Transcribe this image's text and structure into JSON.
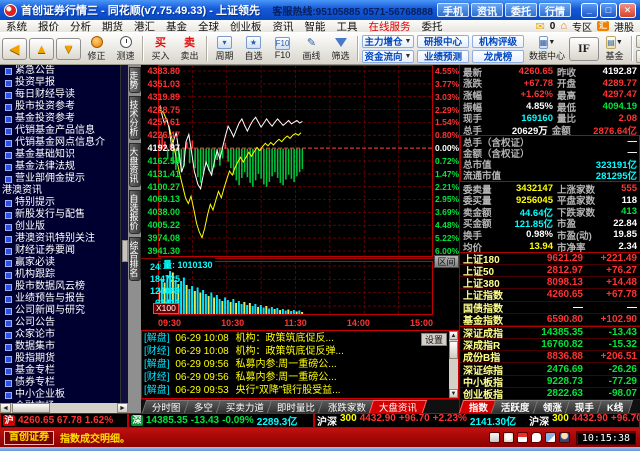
{
  "window": {
    "title": "首创证券行情三 - 同花顺(v7.75.49.33) - 上证领先",
    "hotline": "客服热线:95105885 0571-56768888",
    "quick_buttons": [
      {
        "label": "手机"
      },
      {
        "label": "资讯"
      },
      {
        "label": "委托"
      },
      {
        "label": "行情"
      }
    ],
    "min": "_",
    "max": "□",
    "close": "✕"
  },
  "menu": {
    "items": [
      {
        "label": "系统"
      },
      {
        "label": "报价"
      },
      {
        "label": "分析"
      },
      {
        "label": "期货"
      },
      {
        "label": "港汇"
      },
      {
        "label": "基金"
      },
      {
        "label": "全球"
      },
      {
        "label": "创业板"
      },
      {
        "label": "资讯"
      },
      {
        "label": "智能"
      },
      {
        "label": "工具"
      },
      {
        "label": "在线服务",
        "cls": "hot"
      },
      {
        "label": "委托"
      }
    ],
    "mail_badge": "0",
    "zone_label": "专区",
    "hk_icon": "汇",
    "hk_label": "港股"
  },
  "toolbar": {
    "back": "◀",
    "up": "▲",
    "down": "▼",
    "fix": "修正",
    "speed": "测速",
    "buy_icon": "买",
    "buy": "买入",
    "sell_icon": "卖",
    "sell": "卖出",
    "period": "周期",
    "watchlist": "自选",
    "f10": "F10",
    "draw": "画线",
    "draw_icon": "✎",
    "filter": "筛选",
    "main_force": "主力增仓",
    "research": "研报中心",
    "rating": "机构评级",
    "moneyflow": "资金流向",
    "forecast": "业绩预测",
    "dragon": "龙虎榜",
    "datacenter": "数据中心",
    "if_label": "IF",
    "fund": "基金",
    "markets": [
      {
        "label": "全球"
      },
      {
        "label": "港股"
      },
      {
        "label": "债"
      },
      {
        "label": "期货"
      },
      {
        "label": "外汇"
      },
      {
        "label": "美"
      }
    ]
  },
  "sidebar": {
    "items": [
      {
        "label": "紧急公告"
      },
      {
        "label": "投资早报"
      },
      {
        "label": "每日财经导读"
      },
      {
        "label": "股市投资参考"
      },
      {
        "label": "基金投资参考"
      },
      {
        "label": "代销基金产品信息"
      },
      {
        "label": "代销基金网点信息介"
      },
      {
        "label": "基金基础知识"
      },
      {
        "label": "基金法律法规"
      },
      {
        "label": "营业部佣金提示"
      },
      {
        "label": "港澳资讯",
        "cls": "hdr"
      },
      {
        "label": "特别提示"
      },
      {
        "label": "新股发行与配售"
      },
      {
        "label": "创业版"
      },
      {
        "label": "港澳资讯特别关注"
      },
      {
        "label": "财经证券要闻"
      },
      {
        "label": "赢家必读"
      },
      {
        "label": "机构跟踪"
      },
      {
        "label": "股市数据风云榜"
      },
      {
        "label": "业绩预告与报告"
      },
      {
        "label": "公司新闻与研究"
      },
      {
        "label": "公司公告"
      },
      {
        "label": "众家论市"
      },
      {
        "label": "数据集市"
      },
      {
        "label": "股指期货"
      },
      {
        "label": "基金专栏"
      },
      {
        "label": "债券专栏"
      },
      {
        "label": "中小企业板"
      },
      {
        "label": "金融市场"
      }
    ]
  },
  "vtabs": [
    {
      "label": "走势",
      "cls": "first"
    },
    {
      "label": "技术分析"
    },
    {
      "label": "大盘资讯"
    },
    {
      "label": "自选报价"
    },
    {
      "label": "综合排名"
    }
  ],
  "chart": {
    "price_labels": [
      {
        "t": "4383.80",
        "c": "red"
      },
      {
        "t": "4351.03",
        "c": "red"
      },
      {
        "t": "4319.89",
        "c": "red"
      },
      {
        "t": "4288.75",
        "c": "red"
      },
      {
        "t": "4257.61",
        "c": "red"
      },
      {
        "t": "4226.47",
        "c": "red"
      },
      {
        "t": "4192.87",
        "c": "white"
      },
      {
        "t": "4162.55",
        "c": "green"
      },
      {
        "t": "4131.41",
        "c": "green"
      },
      {
        "t": "4100.27",
        "c": "green"
      },
      {
        "t": "4069.13",
        "c": "green"
      },
      {
        "t": "4038.00",
        "c": "green"
      },
      {
        "t": "4005.22",
        "c": "green"
      },
      {
        "t": "3974.08",
        "c": "green"
      },
      {
        "t": "3941.30",
        "c": "green"
      }
    ],
    "pct_labels": [
      {
        "t": "4.55%",
        "c": "red"
      },
      {
        "t": "3.77%",
        "c": "red"
      },
      {
        "t": "3.03%",
        "c": "red"
      },
      {
        "t": "2.29%",
        "c": "red"
      },
      {
        "t": "1.54%",
        "c": "red"
      },
      {
        "t": "0.80%",
        "c": "red"
      },
      {
        "t": "0.00%",
        "c": "white"
      },
      {
        "t": "0.72%",
        "c": "green"
      },
      {
        "t": "1.47%",
        "c": "green"
      },
      {
        "t": "2.21%",
        "c": "green"
      },
      {
        "t": "2.95%",
        "c": "green"
      },
      {
        "t": "3.69%",
        "c": "green"
      },
      {
        "t": "4.48%",
        "c": "green"
      },
      {
        "t": "5.22%",
        "c": "green"
      },
      {
        "t": "6.00%",
        "c": "green"
      }
    ],
    "x_ticks": [
      {
        "t": "09:30"
      },
      {
        "t": "10:30"
      },
      {
        "t": "11:30"
      },
      {
        "t": "14:00"
      },
      {
        "t": "15:00"
      }
    ],
    "volume_label": "量: 1010130",
    "volume_axis": [
      {
        "t": "245381"
      },
      {
        "t": "184725"
      },
      {
        "t": "124069"
      },
      {
        "t": "63413"
      }
    ],
    "x100": "X100",
    "range_btn": "区间",
    "axis": {
      "top": 4383.8,
      "bottom": 3941.3,
      "mid": 4192.87
    },
    "colors": {
      "up": "#ff3030",
      "down": "#00c23a",
      "line": "#ffffff",
      "avg": "#ffff00",
      "grid": "#820000",
      "gridmid": "#ff4444",
      "volc": "#00e5ff",
      "voly": "#e8e85a",
      "border": "#c00000"
    },
    "white_line": [
      [
        0.0,
        4289.8
      ],
      [
        0.008,
        4297.5
      ],
      [
        0.016,
        4272
      ],
      [
        0.024,
        4254
      ],
      [
        0.032,
        4266
      ],
      [
        0.04,
        4244
      ],
      [
        0.05,
        4196
      ],
      [
        0.058,
        4216
      ],
      [
        0.066,
        4232
      ],
      [
        0.076,
        4186
      ],
      [
        0.086,
        4135
      ],
      [
        0.094,
        4152
      ],
      [
        0.102,
        4210
      ],
      [
        0.112,
        4228
      ],
      [
        0.122,
        4186
      ],
      [
        0.132,
        4138
      ],
      [
        0.145,
        4105
      ],
      [
        0.155,
        4094.2
      ],
      [
        0.165,
        4130
      ],
      [
        0.175,
        4160
      ],
      [
        0.185,
        4142
      ],
      [
        0.195,
        4128
      ],
      [
        0.205,
        4162
      ],
      [
        0.215,
        4188
      ],
      [
        0.225,
        4168
      ],
      [
        0.235,
        4196
      ],
      [
        0.245,
        4224
      ],
      [
        0.255,
        4248
      ],
      [
        0.265,
        4236
      ],
      [
        0.275,
        4222
      ],
      [
        0.285,
        4240
      ],
      [
        0.295,
        4256
      ],
      [
        0.305,
        4266
      ],
      [
        0.315,
        4250
      ],
      [
        0.325,
        4236
      ],
      [
        0.335,
        4250
      ],
      [
        0.345,
        4262
      ],
      [
        0.355,
        4270
      ],
      [
        0.365,
        4258
      ],
      [
        0.375,
        4246
      ],
      [
        0.385,
        4256
      ],
      [
        0.395,
        4266
      ],
      [
        0.405,
        4256
      ],
      [
        0.415,
        4248
      ],
      [
        0.425,
        4258
      ],
      [
        0.435,
        4266
      ],
      [
        0.445,
        4258
      ],
      [
        0.455,
        4250
      ],
      [
        0.465,
        4256
      ],
      [
        0.475,
        4262
      ],
      [
        0.485,
        4254
      ],
      [
        0.495,
        4258
      ],
      [
        0.505,
        4262
      ],
      [
        0.515,
        4256
      ],
      [
        0.525,
        4260
      ]
    ],
    "yellow_line": [
      [
        0.0,
        4289.8
      ],
      [
        0.02,
        4282
      ],
      [
        0.04,
        4248
      ],
      [
        0.06,
        4190
      ],
      [
        0.08,
        4128
      ],
      [
        0.1,
        4072
      ],
      [
        0.11,
        4058
      ],
      [
        0.12,
        4076
      ],
      [
        0.13,
        4044
      ],
      [
        0.14,
        4010
      ],
      [
        0.15,
        3988
      ],
      [
        0.16,
        3974.1
      ],
      [
        0.17,
        3998
      ],
      [
        0.18,
        4030
      ],
      [
        0.19,
        4056
      ],
      [
        0.2,
        4042
      ],
      [
        0.21,
        4066
      ],
      [
        0.22,
        4088
      ],
      [
        0.23,
        4072
      ],
      [
        0.24,
        4096
      ],
      [
        0.25,
        4118
      ],
      [
        0.26,
        4138
      ],
      [
        0.27,
        4128
      ],
      [
        0.28,
        4146
      ],
      [
        0.29,
        4160
      ],
      [
        0.3,
        4172
      ],
      [
        0.31,
        4160
      ],
      [
        0.32,
        4172
      ],
      [
        0.33,
        4184
      ],
      [
        0.34,
        4174
      ],
      [
        0.35,
        4186
      ],
      [
        0.36,
        4196
      ],
      [
        0.37,
        4188
      ],
      [
        0.38,
        4198
      ],
      [
        0.39,
        4206
      ],
      [
        0.4,
        4200
      ],
      [
        0.41,
        4208
      ],
      [
        0.42,
        4202
      ],
      [
        0.43,
        4210
      ],
      [
        0.44,
        4216
      ],
      [
        0.45,
        4210
      ],
      [
        0.46,
        4218
      ],
      [
        0.47,
        4224
      ],
      [
        0.48,
        4218
      ],
      [
        0.49,
        4226
      ],
      [
        0.5,
        4230
      ],
      [
        0.51,
        4226
      ],
      [
        0.52,
        4232
      ]
    ],
    "mid_bars": {
      "start": 0.005,
      "step": 0.01,
      "deltas": [
        22,
        34,
        18,
        -26,
        12,
        -38,
        -52,
        -30,
        -58,
        -44,
        16,
        -36,
        20,
        -48,
        -70,
        -84,
        -62,
        -40,
        -54,
        -66,
        -46,
        -28,
        -42,
        -24,
        14,
        -32,
        -48,
        -64,
        -78,
        -90,
        -72,
        -58,
        -70,
        -84,
        -94,
        -78,
        -62,
        -74,
        -88,
        -94,
        -82,
        -68,
        -58,
        -72,
        -84,
        -90,
        -76,
        -64,
        -74,
        -82,
        -68,
        -58,
        -50
      ]
    },
    "vol_bars": {
      "start": 0.004,
      "step": 0.01,
      "heights": [
        0.55,
        0.72,
        0.65,
        0.8,
        0.92,
        0.85,
        0.7,
        0.62,
        0.68,
        0.75,
        0.6,
        0.52,
        0.58,
        0.48,
        0.55,
        0.45,
        0.5,
        0.42,
        0.38,
        0.45,
        0.35,
        0.4,
        0.32,
        0.28,
        0.35,
        0.3,
        0.26,
        0.32,
        0.24,
        0.28,
        0.22,
        0.26,
        0.2,
        0.24,
        0.18,
        0.22,
        0.16,
        0.2,
        0.15,
        0.18,
        0.13,
        0.16,
        0.12,
        0.14,
        0.1,
        0.12,
        0.09,
        0.11,
        0.08,
        0.1,
        0.07,
        0.09,
        0.06
      ],
      "colors": "ccyccycyccyccycyccycyccyccycyccycyccyccyccycyccyccycy"
    }
  },
  "news": {
    "rows": [
      {
        "tag": "[解盘]",
        "time": "06-29 10:08",
        "text": "机构：政策筑底促反..."
      },
      {
        "tag": "[财经]",
        "time": "06-29 10:08",
        "text": "机构：政策筑底促反弹..."
      },
      {
        "tag": "[解盘]",
        "time": "06-29 09:56",
        "text": "私募内参:周一重磅公..."
      },
      {
        "tag": "[财经]",
        "time": "06-29 09:56",
        "text": "私募内参:周一重磅公..."
      },
      {
        "tag": "[解盘]",
        "time": "06-29 09:53",
        "text": "央行“双降”银行股受益..."
      }
    ],
    "settings": "设置"
  },
  "chart_tabs": [
    {
      "label": "分时图"
    },
    {
      "label": "多空"
    },
    {
      "label": "买卖力道"
    },
    {
      "label": "即时量比"
    },
    {
      "label": "涨跌家数"
    },
    {
      "label": "大盘资讯",
      "cls": "sel"
    }
  ],
  "panel": {
    "quote": [
      {
        "l1": "最新",
        "v1": "4260.65",
        "c1": "red",
        "l2": "昨收",
        "v2": "4192.87",
        "c2": "white"
      },
      {
        "l1": "涨跌",
        "v1": "+67.78",
        "c1": "red",
        "l2": "开盘",
        "v2": "4289.77",
        "c2": "red"
      },
      {
        "l1": "涨幅",
        "v1": "+1.62%",
        "c1": "red",
        "l2": "最高",
        "v2": "4297.47",
        "c2": "red"
      },
      {
        "l1": "振幅",
        "v1": "4.85%",
        "c1": "white",
        "l2": "最低",
        "v2": "4094.19",
        "c2": "green"
      },
      {
        "l1": "现手",
        "v1": "169160",
        "c1": "cyan",
        "l2": "量比",
        "v2": "2.08",
        "c2": "red"
      },
      {
        "l1": "总手",
        "v1": "20629万",
        "c1": "white",
        "l2": "金额",
        "v2": "2876.64亿",
        "c2": "red"
      }
    ],
    "wv": [
      {
        "l": "总手（含权证）",
        "v": "—",
        "c": "white"
      },
      {
        "l": "金额（含权证）",
        "v": "—",
        "c": "white"
      },
      {
        "l": "总市值",
        "v": "323191亿",
        "c": "cyan"
      },
      {
        "l": "流通市值",
        "v": "281295亿",
        "c": "cyan"
      }
    ],
    "depth": [
      {
        "l1": "委卖量",
        "v1": "3432147",
        "c1": "yellow",
        "l2": "上涨家数",
        "v2": "555",
        "c2": "red"
      },
      {
        "l1": "委买量",
        "v1": "9256045",
        "c1": "yellow",
        "l2": "平盘家数",
        "v2": "118",
        "c2": "white"
      },
      {
        "l1": "卖金额",
        "v1": "44.64亿",
        "c1": "cyan",
        "l2": "下跌家数",
        "v2": "413",
        "c2": "green"
      },
      {
        "l1": "买金额",
        "v1": "121.85亿",
        "c1": "cyan",
        "l2": "市盈",
        "v2": "22.84",
        "c2": "white"
      },
      {
        "l1": "换手",
        "v1": "0.98%",
        "c1": "white",
        "l2": "市盈(动)",
        "v2": "19.85",
        "c2": "white"
      },
      {
        "l1": "均价",
        "v1": "13.94",
        "c1": "yellow",
        "l2": "市净率",
        "v2": "2.34",
        "c2": "white"
      }
    ],
    "idx_sh": [
      {
        "n": "上证180",
        "p": "9621.29",
        "ch": "+221.49",
        "c": "red"
      },
      {
        "n": "上证50",
        "p": "2812.97",
        "ch": "+76.27",
        "c": "red"
      },
      {
        "n": "上证380",
        "p": "8098.13",
        "ch": "+14.48",
        "c": "red"
      },
      {
        "n": "上证指数",
        "p": "4260.65",
        "ch": "+67.78",
        "c": "red"
      },
      {
        "n": "国债指数",
        "p": "—",
        "ch": "—",
        "c": "white"
      },
      {
        "n": "基金指数",
        "p": "6590.80",
        "ch": "+102.90",
        "c": "red"
      }
    ],
    "idx_sz": [
      {
        "n": "深证成指",
        "p": "14385.35",
        "ch": "-13.43",
        "c": "green"
      },
      {
        "n": "深成指R",
        "p": "16760.82",
        "ch": "-15.32",
        "c": "green"
      },
      {
        "n": "成份B指",
        "p": "8836.88",
        "ch": "+206.51",
        "c": "red"
      },
      {
        "n": "深证综指",
        "p": "2476.69",
        "ch": "-26.26",
        "c": "green"
      },
      {
        "n": "中小板指",
        "p": "9228.73",
        "ch": "-77.29",
        "c": "green"
      },
      {
        "n": "创业板指",
        "p": "2822.63",
        "ch": "-98.07",
        "c": "green"
      }
    ],
    "tabs": [
      {
        "label": "指数",
        "cls": "sel"
      },
      {
        "label": "活跃度"
      },
      {
        "label": "领涨"
      },
      {
        "label": "现手"
      },
      {
        "label": "K线"
      }
    ]
  },
  "ticker": {
    "seg1": {
      "icon": "沪",
      "text": "4260.65 67.78 1.62%"
    },
    "seg2": {
      "icon": "深",
      "price": "14385.35",
      "change": "-13.43",
      "pct": "-0.09%",
      "amount": "2289.3亿"
    },
    "seg3": [
      {
        "name": "沪深",
        "num": "300",
        "price": "4432.90",
        "change": "+96.70",
        "pct": "+2.23%",
        "amount": "2141.30亿"
      },
      {
        "name": "沪深",
        "num": "300",
        "price": "4432.90",
        "change": "+96.70",
        "pct": "+2.23%",
        "amount": "2141.30亿"
      }
    ]
  },
  "status": {
    "broker": "首创证券",
    "text": "指数成交明细。",
    "time": "10:15:38"
  }
}
